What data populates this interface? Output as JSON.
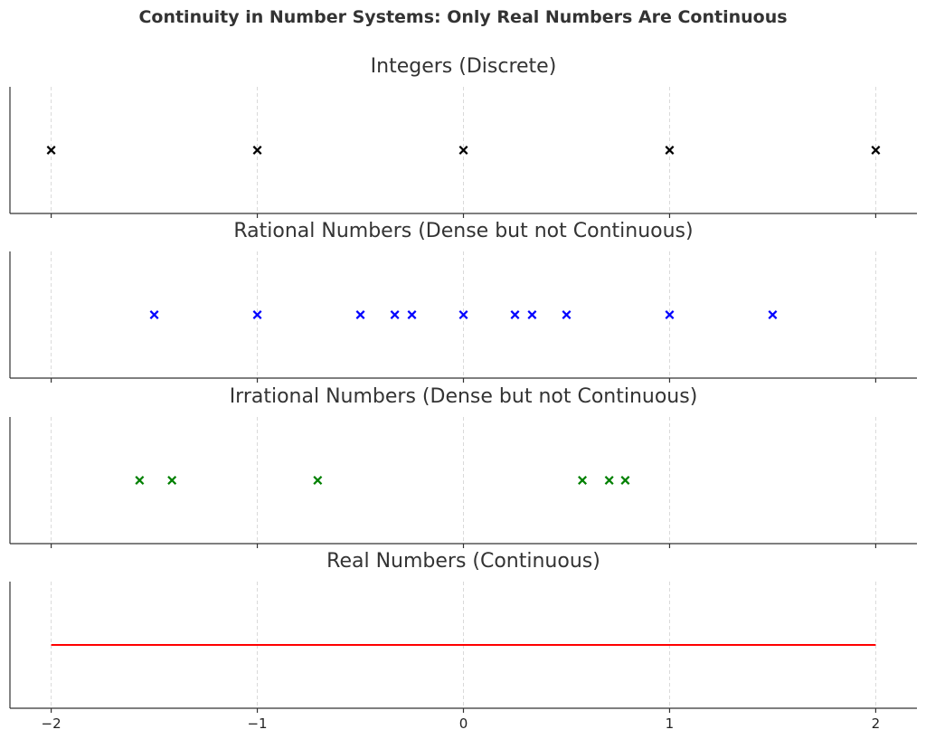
{
  "chart_data": {
    "type": "scatter",
    "title": "Continuity in Number Systems: Only Real Numbers Are Continuous",
    "xlim": [
      -2.2,
      2.2
    ],
    "xticks": [
      -2,
      -1,
      0,
      1,
      2
    ],
    "xtick_labels": [
      "−2",
      "−1",
      "0",
      "1",
      "2"
    ],
    "grid": "vertical dashed",
    "panels": [
      {
        "title": "Integers (Discrete)",
        "kind": "points",
        "marker": "x",
        "color": "#000000",
        "x": [
          -2,
          -1,
          0,
          1,
          2
        ]
      },
      {
        "title": "Rational Numbers (Dense but not Continuous)",
        "kind": "points",
        "marker": "x",
        "color": "#0000ff",
        "x": [
          -1.5,
          -1,
          -0.5,
          -0.333,
          -0.25,
          0,
          0.25,
          0.333,
          0.5,
          1,
          1.5
        ]
      },
      {
        "title": "Irrational Numbers (Dense but not Continuous)",
        "kind": "points",
        "marker": "x",
        "color": "#008000",
        "x": [
          -1.571,
          -1.414,
          -0.707,
          0.577,
          0.707,
          0.785
        ]
      },
      {
        "title": "Real Numbers (Continuous)",
        "kind": "line",
        "color": "#ff0000",
        "x": [
          -2,
          2
        ]
      }
    ]
  }
}
